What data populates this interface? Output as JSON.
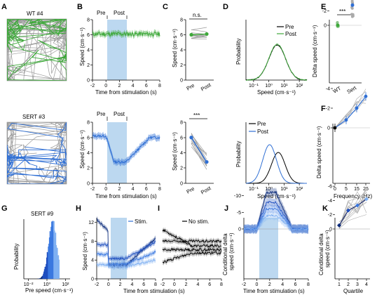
{
  "colors": {
    "green": "#3ea83a",
    "blue": "#2f6fd4",
    "gray": "#9a9a9a",
    "stim": "#bcd8f0",
    "dark": "#1a2a6a"
  },
  "panels": {
    "A": "A",
    "B": "B",
    "C": "C",
    "D": "D",
    "E": "E",
    "F": "F",
    "G": "G",
    "H": "H",
    "I": "I",
    "J": "J",
    "K": "K"
  },
  "A": {
    "wt": "WT #4",
    "sert": "SERT #3"
  },
  "B": {
    "pre": "Pre",
    "post": "Post",
    "ylabel": "Speed (cm·s⁻¹)",
    "xlabel": "Time from stimulation (s)",
    "yticks": [
      "0",
      "2",
      "4",
      "6",
      "8"
    ],
    "xticks": [
      "-2",
      "0",
      "2",
      "4",
      "6",
      "8"
    ]
  },
  "C": {
    "ns": "n.s.",
    "sig": "***",
    "ylabel": "Speed (cm·s⁻¹)",
    "yticks": [
      "0",
      "2",
      "4",
      "6",
      "8"
    ],
    "xticks": [
      "Pre",
      "Post"
    ]
  },
  "D": {
    "legend_pre": "Pre",
    "legend_post": "Post",
    "ylabel": "Probability",
    "xlabel": "Speed (cm·s⁻¹)",
    "xticks": [
      "10⁻¹",
      "10⁰",
      "10¹",
      "10²"
    ]
  },
  "E": {
    "sig": "***",
    "ylabel": "Delta speed (cm·s⁻¹)",
    "yticks": [
      "0",
      "-2",
      "-4",
      "-6",
      "-8"
    ],
    "xticks": [
      "WT",
      "Sert"
    ]
  },
  "F": {
    "ylabel": "Delta speed (cm·s⁻¹)",
    "xlabel": "Frequency (Hz)",
    "yticks": [
      "0",
      "-2",
      "-4"
    ],
    "xticks": [
      "0",
      "5",
      "15",
      "25"
    ]
  },
  "G": {
    "title": "SERT #9",
    "ylabel": "Probability",
    "xlabel": "Pre speed (cm·s⁻¹)",
    "xticks": [
      "10⁻²",
      "10⁰",
      "10²"
    ]
  },
  "H": {
    "legend": "Stim.",
    "ylabel": "Speed (cm·s⁻¹)",
    "yticks": [
      "0",
      "4",
      "8",
      "12"
    ],
    "xticks": [
      "-2",
      "0",
      "2",
      "4",
      "6",
      "8"
    ]
  },
  "I": {
    "legend": "No stim.",
    "xlabel": "Time from stimulation (s)",
    "xticks": [
      "-2",
      "0",
      "2",
      "4",
      "6",
      "8"
    ]
  },
  "J": {
    "ylabel": "Conditional delta speed (cm·s⁻¹)",
    "xlabel": "Time from stimulation (s)",
    "yticks": [
      "0",
      "-5",
      "-10"
    ],
    "xticks": [
      "-2",
      "0",
      "2",
      "4",
      "6",
      "8"
    ]
  },
  "K": {
    "ylabel": "Conditional delta speed (cm·s⁻¹)",
    "xlabel": "Quartile",
    "yticks": [
      "0",
      "-2",
      "-4",
      "-6"
    ],
    "xticks": [
      "1",
      "2",
      "3",
      "4"
    ]
  },
  "chart_data": [
    {
      "panel": "C-top",
      "type": "line",
      "categories": [
        "Pre",
        "Post"
      ],
      "series": [
        {
          "values": [
            6.0,
            6.1
          ]
        }
      ],
      "ylim": [
        0,
        8
      ]
    },
    {
      "panel": "C-bottom",
      "type": "line",
      "categories": [
        "Pre",
        "Post"
      ],
      "series": [
        {
          "values": [
            6.0,
            2.8
          ]
        }
      ],
      "ylim": [
        0,
        8
      ]
    },
    {
      "panel": "F",
      "type": "line",
      "x": [
        0,
        5,
        15,
        25
      ],
      "series": [
        {
          "values": [
            0,
            -0.8,
            -2.0,
            -3.2
          ]
        }
      ],
      "ylim": [
        -5,
        0.5
      ]
    },
    {
      "panel": "K",
      "type": "line",
      "x": [
        1,
        2,
        3,
        4
      ],
      "series": [
        {
          "values": [
            -0.5,
            -2.6,
            -3.3,
            -4.2
          ]
        }
      ],
      "ylim": [
        -7,
        0
      ]
    }
  ]
}
